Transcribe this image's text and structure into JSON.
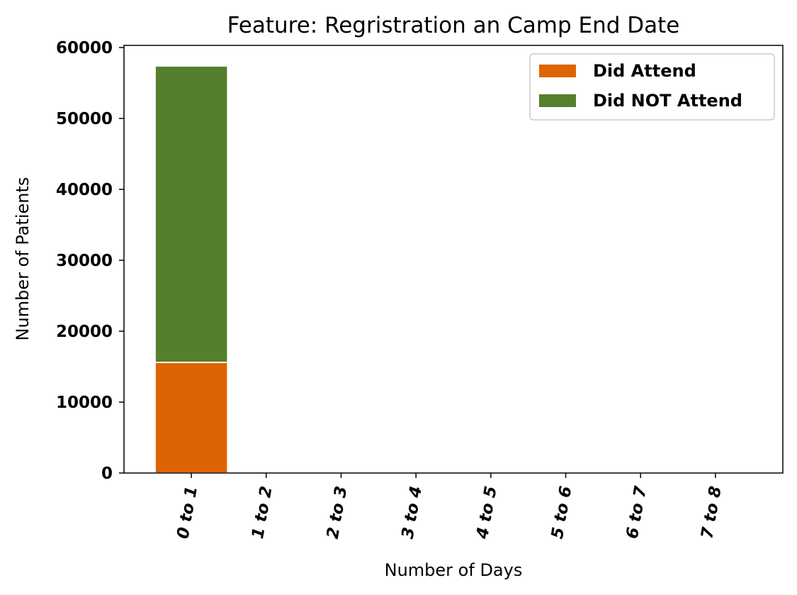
{
  "chart_data": {
    "type": "bar",
    "stacked": true,
    "title": "Feature: Regristration an Camp End Date",
    "xlabel": "Number of Days",
    "ylabel": "Number of Patients",
    "categories": [
      "0 to 1",
      "1 to 2",
      "2 to 3",
      "3 to 4",
      "4 to 5",
      "5 to 6",
      "6 to 7",
      "7 to 8"
    ],
    "series": [
      {
        "name": "Did Attend",
        "color": "#dd6402",
        "values": [
          15600,
          0,
          0,
          0,
          0,
          0,
          0,
          0
        ]
      },
      {
        "name": "Did NOT Attend",
        "color": "#557f2d",
        "values": [
          41800,
          0,
          0,
          0,
          0,
          0,
          0,
          0
        ]
      }
    ],
    "ylim": [
      0,
      60300
    ],
    "yticks": [
      0,
      10000,
      20000,
      30000,
      40000,
      50000,
      60000
    ],
    "ytick_labels": [
      "0",
      "10000",
      "20000",
      "30000",
      "40000",
      "50000",
      "60000"
    ],
    "legend_position": "top-right",
    "grid": false
  }
}
